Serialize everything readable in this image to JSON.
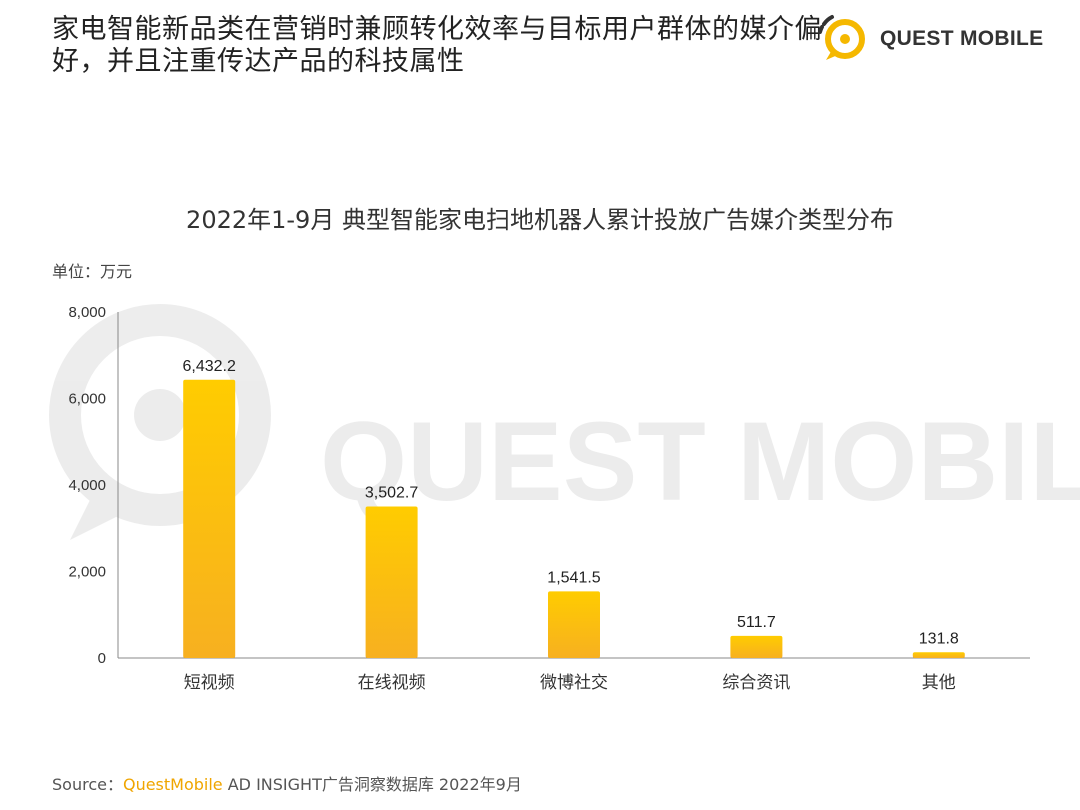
{
  "header": {
    "headline": "家电智能新品类在营销时兼顾转化效率与目标用户群体的媒介偏好，并且注重传达产品的科技属性",
    "brand_name": "QUEST MOBILE",
    "watermark": "QUEST MOBILE"
  },
  "unit": "单位：万元",
  "source": {
    "prefix": "Source：",
    "brand": "QuestMobile",
    "rest": " AD INSIGHT广告洞察数据库 2022年9月"
  },
  "colors": {
    "bar_top": "#FFCC00",
    "bar_bottom": "#F7B020",
    "accent": "#F5B800"
  },
  "chart_data": {
    "type": "bar",
    "title": "2022年1-9月 典型智能家电扫地机器人累计投放广告媒介类型分布",
    "categories": [
      "短视频",
      "在线视频",
      "微博社交",
      "综合资讯",
      "其他"
    ],
    "values": [
      6432.2,
      3502.7,
      1541.5,
      511.7,
      131.8
    ],
    "data_labels": [
      "6,432.2",
      "3,502.7",
      "1,541.5",
      "511.7",
      "131.8"
    ],
    "ylim": [
      0,
      8000
    ],
    "yticks": [
      0,
      2000,
      4000,
      6000,
      8000
    ],
    "ytick_labels": [
      "0",
      "2,000",
      "4,000",
      "6,000",
      "8,000"
    ],
    "xlabel": "",
    "ylabel": "",
    "grid": false,
    "legend": "none"
  }
}
